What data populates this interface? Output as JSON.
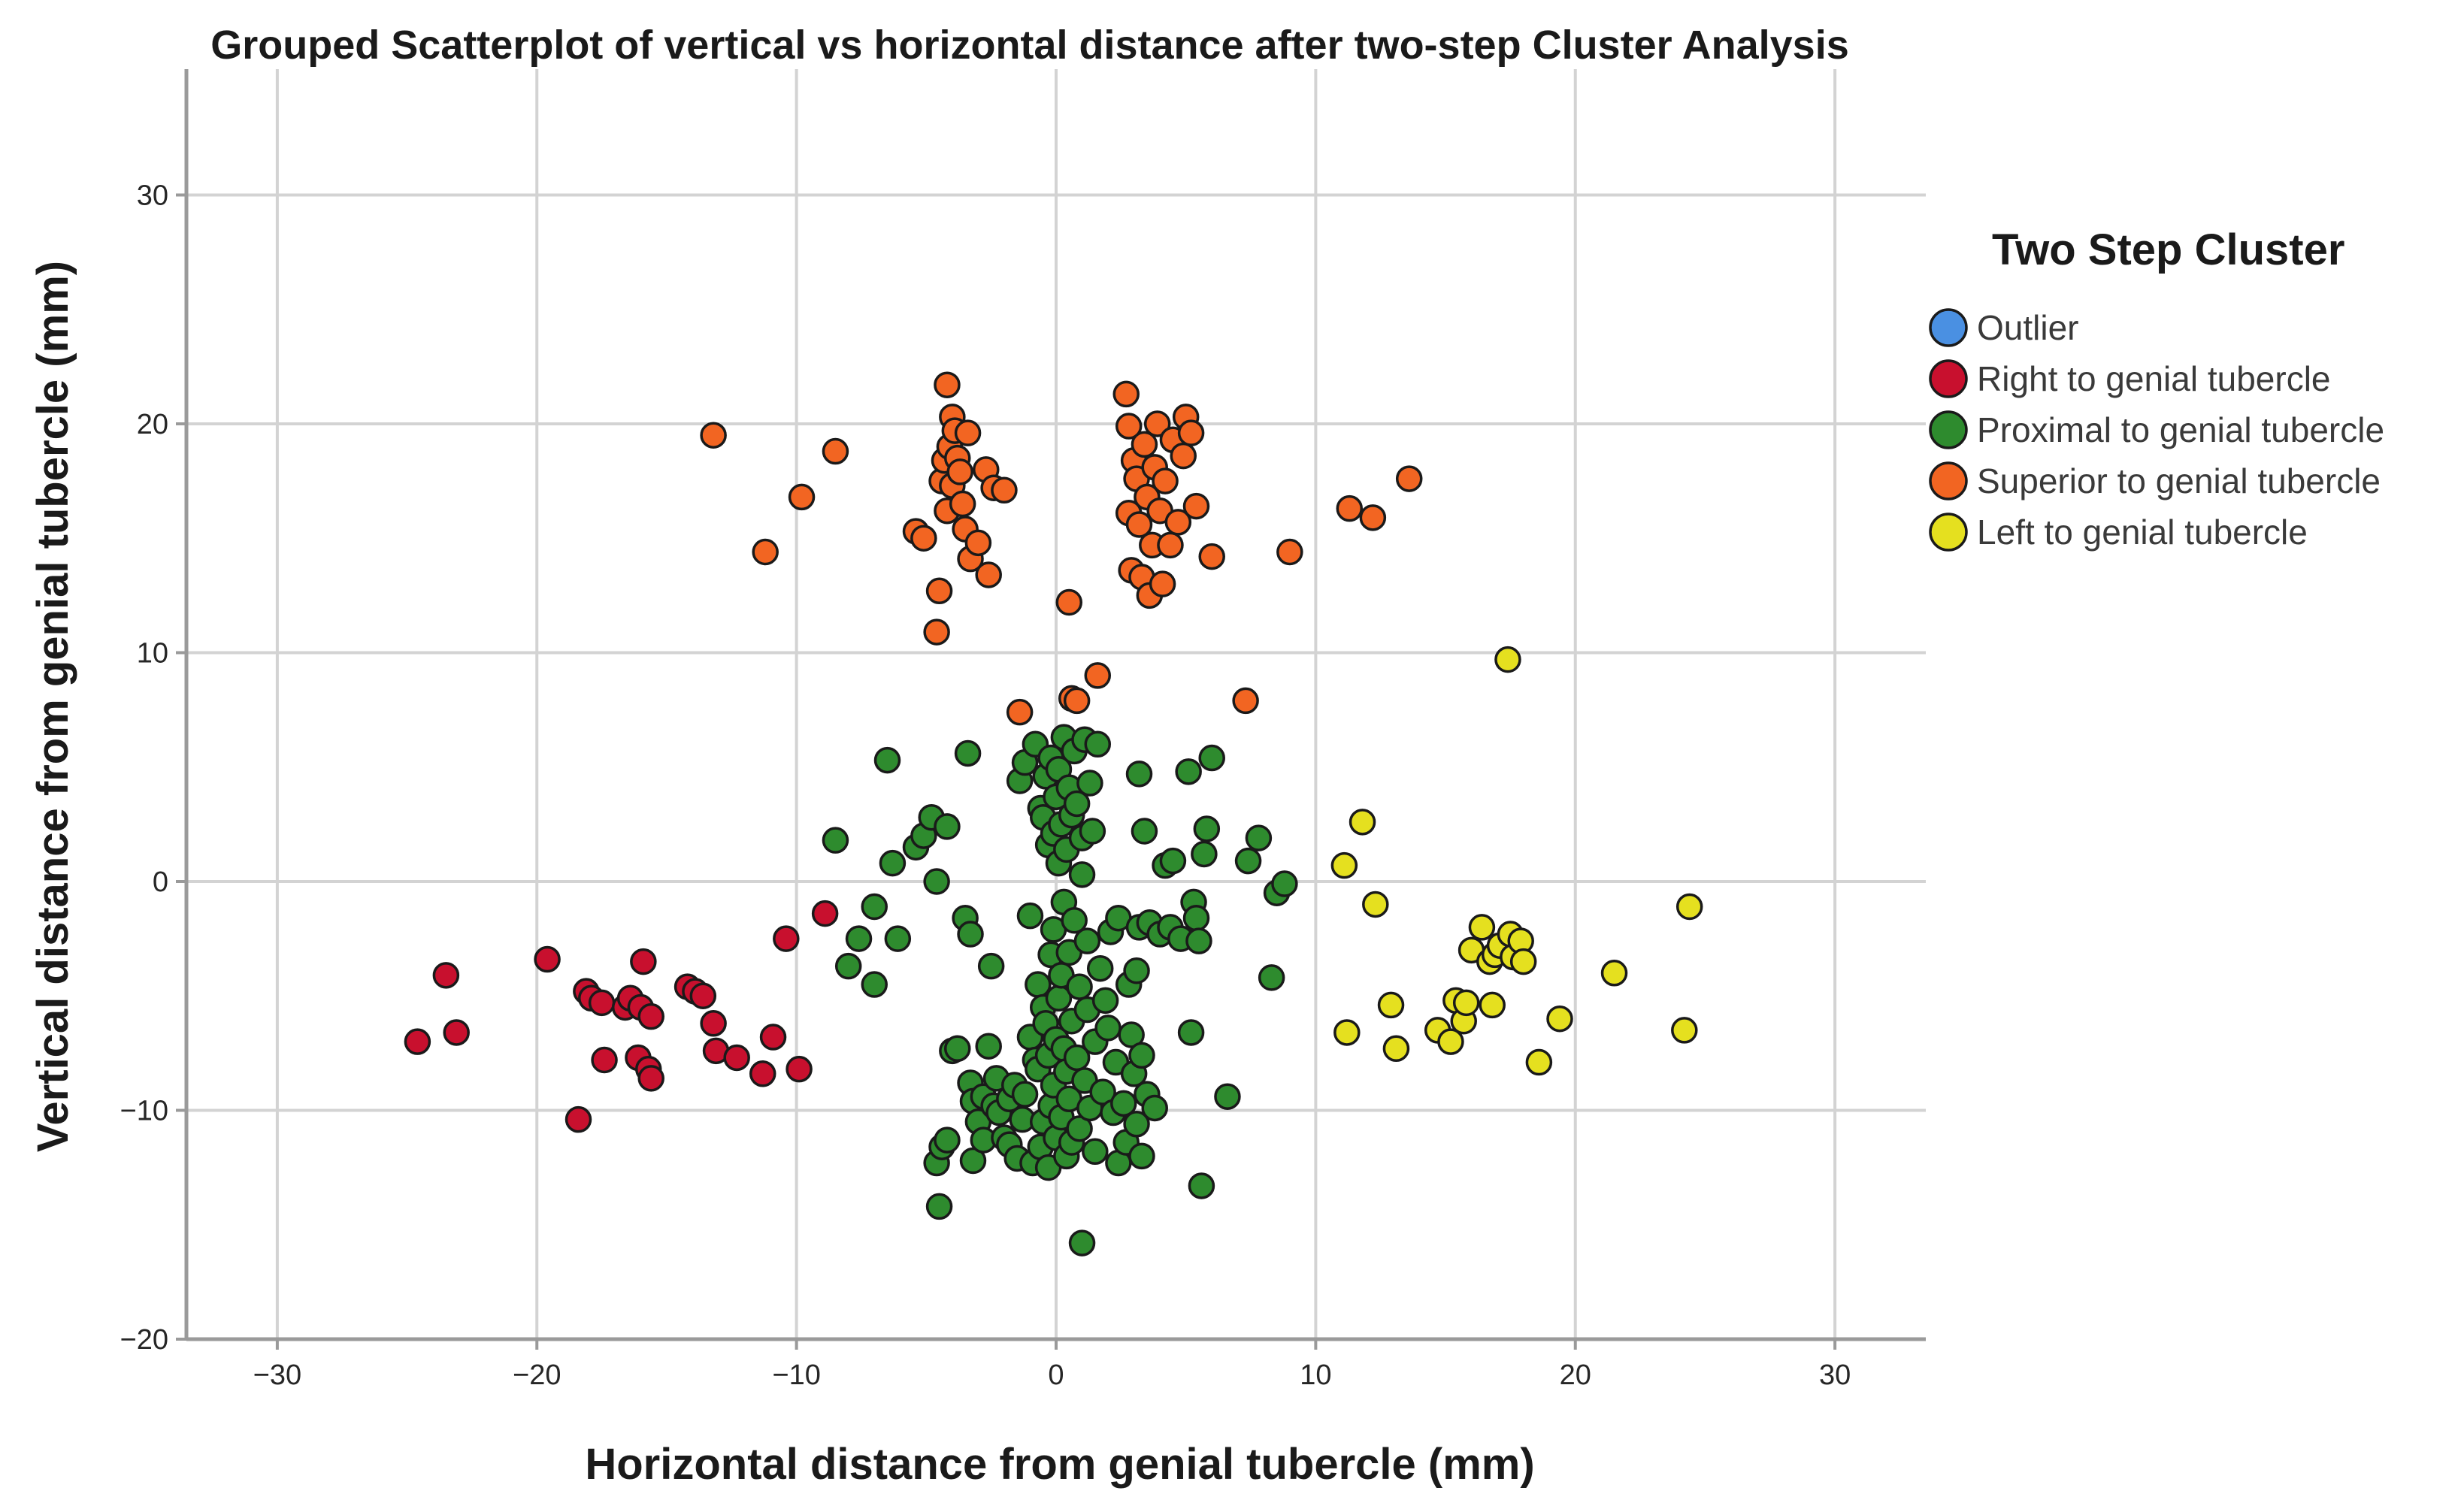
{
  "chart_data": {
    "type": "scatter",
    "title": "Grouped Scatterplot of vertical vs horizontal distance after two-step Cluster Analysis",
    "xlabel": "Horizontal distance from genial tubercle (mm)",
    "ylabel": "Vertical distance from genial tubercle (mm)",
    "xlim": [
      -33.5,
      33.5
    ],
    "ylim": [
      -20,
      35.5
    ],
    "xticks": [
      -30,
      -20,
      -10,
      0,
      10,
      20,
      30
    ],
    "yticks": [
      -20,
      -10,
      0,
      10,
      20,
      30
    ],
    "xtick_labels": [
      "−30",
      "−20",
      "−10",
      "0",
      "10",
      "20",
      "30"
    ],
    "ytick_labels": [
      "−20",
      "−10",
      "0",
      "10",
      "20",
      "30"
    ],
    "grid": true,
    "legend": {
      "title": "Two Step Cluster",
      "placement": "right"
    },
    "series": [
      {
        "name": "Outlier",
        "color": "#4a90e2",
        "points": []
      },
      {
        "name": "Right to genial tubercle",
        "color": "#c8102e",
        "points": [
          [
            -24.6,
            -7.0
          ],
          [
            -23.5,
            -4.1
          ],
          [
            -23.1,
            -6.6
          ],
          [
            -19.6,
            -3.4
          ],
          [
            -18.4,
            -10.4
          ],
          [
            -18.1,
            -4.8
          ],
          [
            -17.9,
            -5.1
          ],
          [
            -17.5,
            -5.3
          ],
          [
            -17.4,
            -7.8
          ],
          [
            -16.6,
            -5.5
          ],
          [
            -16.4,
            -5.1
          ],
          [
            -16.1,
            -7.7
          ],
          [
            -16.0,
            -5.5
          ],
          [
            -15.9,
            -3.5
          ],
          [
            -15.7,
            -8.2
          ],
          [
            -15.6,
            -8.6
          ],
          [
            -15.6,
            -5.9
          ],
          [
            -14.2,
            -4.6
          ],
          [
            -13.9,
            -4.8
          ],
          [
            -13.6,
            -5.0
          ],
          [
            -13.2,
            -6.2
          ],
          [
            -13.1,
            -7.4
          ],
          [
            -12.3,
            -7.7
          ],
          [
            -11.3,
            -8.4
          ],
          [
            -10.9,
            -6.8
          ],
          [
            -10.4,
            -2.5
          ],
          [
            -9.9,
            -8.2
          ],
          [
            -8.9,
            -1.4
          ]
        ]
      },
      {
        "name": "Proximal to genial tubercle",
        "color": "#2e8b2e",
        "points": [
          [
            -8.5,
            1.8
          ],
          [
            -8.0,
            -3.7
          ],
          [
            -7.6,
            -2.5
          ],
          [
            -7.0,
            -1.1
          ],
          [
            -7.0,
            -4.5
          ],
          [
            -6.5,
            5.3
          ],
          [
            -6.3,
            0.8
          ],
          [
            -6.1,
            -2.5
          ],
          [
            -5.4,
            1.5
          ],
          [
            -5.1,
            2.0
          ],
          [
            -4.8,
            2.8
          ],
          [
            -4.6,
            0.0
          ],
          [
            -4.6,
            -12.3
          ],
          [
            -4.5,
            -14.2
          ],
          [
            -4.4,
            -11.6
          ],
          [
            -4.2,
            2.4
          ],
          [
            -4.2,
            -11.3
          ],
          [
            -4.0,
            -7.4
          ],
          [
            -3.8,
            -7.3
          ],
          [
            -3.5,
            -1.6
          ],
          [
            -3.4,
            5.6
          ],
          [
            -3.3,
            -2.3
          ],
          [
            -3.3,
            -8.8
          ],
          [
            -3.2,
            -9.6
          ],
          [
            -3.2,
            -12.2
          ],
          [
            -3.0,
            -10.5
          ],
          [
            -2.8,
            -11.3
          ],
          [
            -2.8,
            -9.4
          ],
          [
            -2.6,
            -7.2
          ],
          [
            -2.5,
            -3.7
          ],
          [
            -2.4,
            -9.8
          ],
          [
            -2.3,
            -8.6
          ],
          [
            -2.2,
            -10.1
          ],
          [
            -2.0,
            -11.2
          ],
          [
            -1.8,
            -11.5
          ],
          [
            -1.8,
            -9.5
          ],
          [
            -1.6,
            -8.9
          ],
          [
            -1.5,
            -12.1
          ],
          [
            -1.4,
            4.4
          ],
          [
            -1.3,
            -10.4
          ],
          [
            -1.2,
            -9.3
          ],
          [
            -1.2,
            5.2
          ],
          [
            -1.0,
            -1.5
          ],
          [
            -1.0,
            -6.8
          ],
          [
            -0.9,
            -12.3
          ],
          [
            -0.8,
            -7.8
          ],
          [
            -0.8,
            6.0
          ],
          [
            -0.7,
            -8.2
          ],
          [
            -0.7,
            -4.5
          ],
          [
            -0.6,
            3.2
          ],
          [
            -0.6,
            -11.6
          ],
          [
            -0.5,
            2.8
          ],
          [
            -0.5,
            -10.5
          ],
          [
            -0.5,
            -5.5
          ],
          [
            -0.4,
            4.6
          ],
          [
            -0.4,
            -6.2
          ],
          [
            -0.3,
            -12.5
          ],
          [
            -0.3,
            -7.6
          ],
          [
            -0.3,
            1.6
          ],
          [
            -0.2,
            -3.2
          ],
          [
            -0.2,
            -9.8
          ],
          [
            -0.2,
            5.4
          ],
          [
            -0.1,
            -8.9
          ],
          [
            -0.1,
            2.1
          ],
          [
            -0.1,
            -2.1
          ],
          [
            0.0,
            -11.2
          ],
          [
            0.0,
            -6.9
          ],
          [
            0.0,
            3.7
          ],
          [
            0.1,
            -5.1
          ],
          [
            0.1,
            0.8
          ],
          [
            0.1,
            4.9
          ],
          [
            0.2,
            -10.3
          ],
          [
            0.2,
            -4.1
          ],
          [
            0.2,
            2.5
          ],
          [
            0.3,
            -7.3
          ],
          [
            0.3,
            -0.9
          ],
          [
            0.3,
            6.3
          ],
          [
            0.4,
            -12.0
          ],
          [
            0.4,
            -8.3
          ],
          [
            0.4,
            1.4
          ],
          [
            0.5,
            -3.1
          ],
          [
            0.5,
            4.1
          ],
          [
            0.5,
            -9.5
          ],
          [
            0.6,
            -6.1
          ],
          [
            0.6,
            2.9
          ],
          [
            0.6,
            -11.4
          ],
          [
            0.7,
            -1.7
          ],
          [
            0.7,
            5.7
          ],
          [
            0.8,
            -7.7
          ],
          [
            0.8,
            3.4
          ],
          [
            0.9,
            -4.6
          ],
          [
            0.9,
            -10.8
          ],
          [
            1.0,
            0.3
          ],
          [
            1.0,
            -15.8
          ],
          [
            1.0,
            1.9
          ],
          [
            1.1,
            -8.7
          ],
          [
            1.1,
            6.2
          ],
          [
            1.2,
            -5.6
          ],
          [
            1.2,
            -2.6
          ],
          [
            1.3,
            4.3
          ],
          [
            1.3,
            -9.9
          ],
          [
            1.4,
            2.2
          ],
          [
            1.5,
            -7.0
          ],
          [
            1.5,
            -11.8
          ],
          [
            1.6,
            6.0
          ],
          [
            1.7,
            -3.8
          ],
          [
            1.8,
            -9.2
          ],
          [
            1.9,
            -5.2
          ],
          [
            2.0,
            -6.4
          ],
          [
            2.1,
            -2.2
          ],
          [
            2.2,
            -10.1
          ],
          [
            2.3,
            -7.9
          ],
          [
            2.4,
            -12.3
          ],
          [
            2.4,
            -1.6
          ],
          [
            2.6,
            -9.7
          ],
          [
            2.7,
            -11.4
          ],
          [
            2.8,
            -4.5
          ],
          [
            2.9,
            -6.7
          ],
          [
            3.0,
            -8.4
          ],
          [
            3.1,
            -10.6
          ],
          [
            3.1,
            -3.9
          ],
          [
            3.2,
            -2.0
          ],
          [
            3.2,
            4.7
          ],
          [
            3.3,
            -7.6
          ],
          [
            3.3,
            -12.0
          ],
          [
            3.4,
            2.2
          ],
          [
            3.5,
            -9.3
          ],
          [
            3.6,
            -1.8
          ],
          [
            3.8,
            -9.9
          ],
          [
            4.0,
            -2.3
          ],
          [
            4.2,
            0.7
          ],
          [
            4.4,
            -2.0
          ],
          [
            4.5,
            0.9
          ],
          [
            4.8,
            -2.5
          ],
          [
            5.1,
            4.8
          ],
          [
            5.2,
            -6.6
          ],
          [
            5.3,
            -0.9
          ],
          [
            5.4,
            -1.6
          ],
          [
            5.5,
            -2.6
          ],
          [
            5.6,
            -13.3
          ],
          [
            5.7,
            1.2
          ],
          [
            5.8,
            2.3
          ],
          [
            6.0,
            5.4
          ],
          [
            6.6,
            -9.4
          ],
          [
            7.4,
            0.9
          ],
          [
            7.8,
            1.9
          ],
          [
            8.3,
            -4.2
          ],
          [
            8.5,
            -0.5
          ],
          [
            8.8,
            -0.1
          ]
        ]
      },
      {
        "name": "Superior to genial tubercle",
        "color": "#f26522",
        "points": [
          [
            -13.2,
            19.5
          ],
          [
            -11.2,
            14.4
          ],
          [
            -9.8,
            16.8
          ],
          [
            -8.5,
            18.8
          ],
          [
            -5.4,
            15.3
          ],
          [
            -5.1,
            15.0
          ],
          [
            -4.5,
            12.7
          ],
          [
            -4.6,
            10.9
          ],
          [
            -4.4,
            17.5
          ],
          [
            -4.2,
            16.2
          ],
          [
            -4.2,
            21.7
          ],
          [
            -4.3,
            18.4
          ],
          [
            -4.1,
            19.0
          ],
          [
            -4.0,
            20.3
          ],
          [
            -4.0,
            17.3
          ],
          [
            -3.9,
            19.7
          ],
          [
            -3.8,
            18.5
          ],
          [
            -3.7,
            17.9
          ],
          [
            -3.6,
            16.5
          ],
          [
            -3.5,
            15.4
          ],
          [
            -3.4,
            19.6
          ],
          [
            -3.3,
            14.1
          ],
          [
            -3.0,
            14.8
          ],
          [
            -2.7,
            18.0
          ],
          [
            -2.6,
            13.4
          ],
          [
            -2.4,
            17.2
          ],
          [
            -2.0,
            17.1
          ],
          [
            -1.4,
            7.4
          ],
          [
            0.5,
            12.2
          ],
          [
            0.6,
            8.0
          ],
          [
            0.8,
            7.9
          ],
          [
            1.6,
            9.0
          ],
          [
            2.7,
            21.3
          ],
          [
            2.8,
            19.9
          ],
          [
            2.8,
            16.1
          ],
          [
            2.9,
            13.6
          ],
          [
            3.0,
            18.4
          ],
          [
            3.1,
            17.6
          ],
          [
            3.2,
            15.6
          ],
          [
            3.3,
            13.3
          ],
          [
            3.4,
            19.1
          ],
          [
            3.5,
            16.8
          ],
          [
            3.6,
            12.5
          ],
          [
            3.7,
            14.7
          ],
          [
            3.8,
            18.1
          ],
          [
            3.9,
            20.0
          ],
          [
            4.0,
            16.2
          ],
          [
            4.1,
            13.0
          ],
          [
            4.2,
            17.5
          ],
          [
            4.4,
            14.7
          ],
          [
            4.5,
            19.3
          ],
          [
            4.7,
            15.7
          ],
          [
            4.9,
            18.6
          ],
          [
            5.0,
            20.3
          ],
          [
            5.2,
            19.6
          ],
          [
            5.4,
            16.4
          ],
          [
            6.0,
            14.2
          ],
          [
            7.3,
            7.9
          ],
          [
            9.0,
            14.4
          ],
          [
            11.3,
            16.3
          ],
          [
            12.2,
            15.9
          ],
          [
            13.6,
            17.6
          ]
        ]
      },
      {
        "name": "Left to genial tubercle",
        "color": "#e5e01f",
        "points": [
          [
            11.1,
            0.7
          ],
          [
            11.2,
            -6.6
          ],
          [
            11.8,
            2.6
          ],
          [
            12.3,
            -1.0
          ],
          [
            12.9,
            -5.4
          ],
          [
            13.1,
            -7.3
          ],
          [
            14.7,
            -6.5
          ],
          [
            15.2,
            -7.0
          ],
          [
            15.4,
            -5.2
          ],
          [
            15.7,
            -6.1
          ],
          [
            15.8,
            -5.3
          ],
          [
            16.0,
            -3.0
          ],
          [
            16.4,
            -2.0
          ],
          [
            16.7,
            -3.5
          ],
          [
            16.8,
            -5.4
          ],
          [
            16.9,
            -3.2
          ],
          [
            17.1,
            -2.8
          ],
          [
            17.4,
            9.7
          ],
          [
            17.5,
            -2.3
          ],
          [
            17.6,
            -3.3
          ],
          [
            17.9,
            -2.6
          ],
          [
            18.0,
            -3.5
          ],
          [
            18.6,
            -7.9
          ],
          [
            19.4,
            -6.0
          ],
          [
            21.5,
            -4.0
          ],
          [
            24.2,
            -6.5
          ],
          [
            24.4,
            -1.1
          ]
        ]
      }
    ]
  }
}
